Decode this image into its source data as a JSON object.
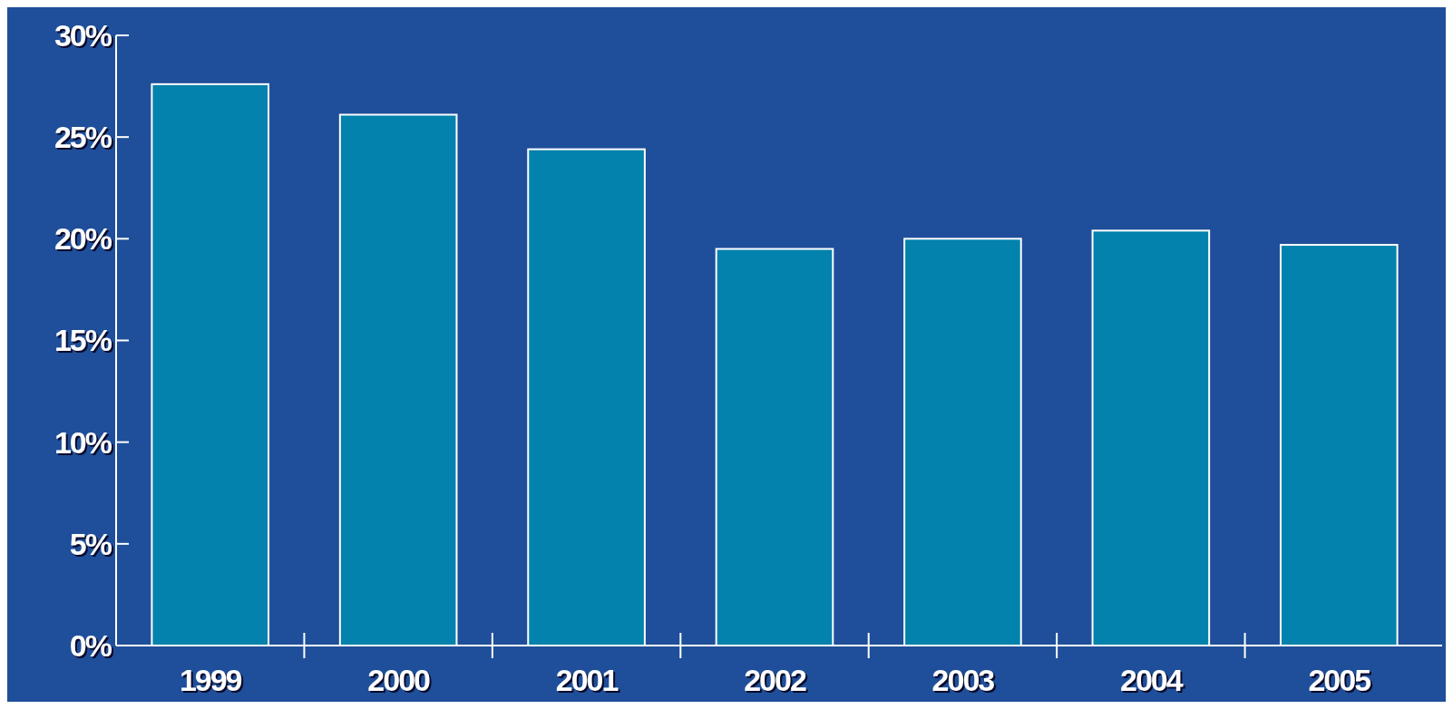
{
  "chart_data": {
    "type": "bar",
    "categories": [
      "1999",
      "2000",
      "2001",
      "2002",
      "2003",
      "2004",
      "2005"
    ],
    "values": [
      27.6,
      26.1,
      24.4,
      19.5,
      20.0,
      20.4,
      19.7
    ],
    "color": "#0282ad",
    "ylim": [
      0,
      30
    ],
    "yticks": [
      {
        "value": 0,
        "label": "0%"
      },
      {
        "value": 5,
        "label": "5%"
      },
      {
        "value": 10,
        "label": "10%"
      },
      {
        "value": 15,
        "label": "15%"
      },
      {
        "value": 20,
        "label": "20%"
      },
      {
        "value": 25,
        "label": "25%"
      },
      {
        "value": 30,
        "label": "30%"
      }
    ],
    "grid": false
  }
}
